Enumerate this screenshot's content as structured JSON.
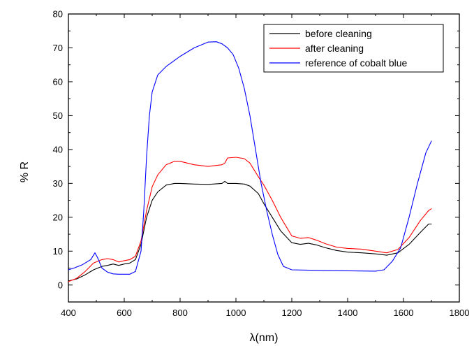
{
  "chart_data": {
    "type": "line",
    "title": "",
    "xlabel": "λ(nm)",
    "ylabel": "% R",
    "xlim": [
      400,
      1800
    ],
    "ylim": [
      -5,
      80
    ],
    "x_ticks": [
      400,
      600,
      800,
      1000,
      1200,
      1400,
      1600,
      1800
    ],
    "y_ticks": [
      0,
      10,
      20,
      30,
      40,
      50,
      60,
      70,
      80
    ],
    "grid": false,
    "legend_position": "top-right",
    "series": [
      {
        "name": "before cleaning",
        "color": "#000000",
        "x": [
          400,
          430,
          460,
          490,
          520,
          540,
          560,
          580,
          600,
          620,
          640,
          660,
          680,
          700,
          720,
          750,
          780,
          800,
          850,
          900,
          950,
          960,
          970,
          1000,
          1030,
          1050,
          1080,
          1100,
          1130,
          1160,
          1200,
          1230,
          1260,
          1290,
          1320,
          1360,
          1400,
          1450,
          1500,
          1540,
          1580,
          1620,
          1660,
          1690,
          1700
        ],
        "y": [
          1.2,
          1.8,
          3,
          4.5,
          5.5,
          5.8,
          6.2,
          5.8,
          6.2,
          6.5,
          7.5,
          12,
          20,
          25,
          27.5,
          29.5,
          30,
          30,
          29.8,
          29.7,
          30,
          30.6,
          30,
          30,
          29.8,
          29.2,
          27,
          24,
          20,
          16,
          12.5,
          12,
          12.3,
          11.8,
          11,
          10.2,
          9.7,
          9.5,
          9.2,
          8.8,
          9.5,
          12,
          15.5,
          18,
          18
        ]
      },
      {
        "name": "after cleaning",
        "color": "#ff0000",
        "x": [
          400,
          430,
          460,
          490,
          520,
          540,
          560,
          580,
          600,
          620,
          640,
          660,
          680,
          700,
          720,
          750,
          780,
          800,
          850,
          900,
          950,
          960,
          970,
          1000,
          1030,
          1050,
          1080,
          1100,
          1130,
          1160,
          1200,
          1230,
          1260,
          1290,
          1320,
          1360,
          1400,
          1450,
          1500,
          1540,
          1580,
          1620,
          1660,
          1690,
          1700
        ],
        "y": [
          1,
          2,
          4,
          6.5,
          7.5,
          7.8,
          7.5,
          6.8,
          7.2,
          7.5,
          8.5,
          13,
          22,
          29,
          32.5,
          35.5,
          36.5,
          36.5,
          35.5,
          35,
          35.5,
          36,
          37.5,
          37.7,
          37.3,
          36,
          32,
          29.5,
          25,
          20,
          14.5,
          13.8,
          14,
          13.2,
          12.2,
          11.2,
          10.8,
          10.6,
          10,
          9.5,
          10.5,
          14,
          19,
          22,
          22.5
        ]
      },
      {
        "name": "reference of cobalt blue",
        "color": "#0000ff",
        "x": [
          400,
          420,
          450,
          480,
          495,
          505,
          520,
          540,
          560,
          580,
          600,
          620,
          640,
          660,
          670,
          680,
          690,
          700,
          720,
          750,
          800,
          850,
          900,
          930,
          950,
          970,
          990,
          1010,
          1030,
          1050,
          1070,
          1090,
          1110,
          1130,
          1150,
          1170,
          1200,
          1250,
          1300,
          1400,
          1500,
          1530,
          1560,
          1590,
          1620,
          1650,
          1680,
          1700
        ],
        "y": [
          4.5,
          5,
          6,
          7.5,
          9.5,
          8,
          5,
          3.8,
          3.3,
          3.2,
          3.2,
          3.2,
          4,
          10,
          22,
          38,
          50,
          57,
          62,
          64.5,
          67.5,
          70,
          71.7,
          71.8,
          71.2,
          70,
          68,
          64,
          58,
          50,
          40,
          30,
          22,
          15,
          9,
          5.5,
          4.5,
          4.4,
          4.3,
          4.2,
          4.1,
          4.5,
          7,
          11,
          20,
          30,
          39,
          42.5
        ]
      }
    ]
  }
}
